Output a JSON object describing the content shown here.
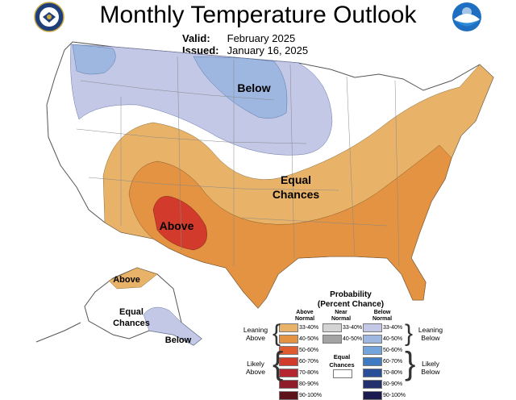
{
  "title": "Monthly Temperature Outlook",
  "valid": {
    "label": "Valid:",
    "value": "February 2025"
  },
  "issued": {
    "label": "Issued:",
    "value": "January 16, 2025"
  },
  "map_labels": {
    "below_north": "Below",
    "equal_line1": "Equal",
    "equal_line2": "Chances",
    "above_sw": "Above",
    "ak_above": "Above",
    "ak_equal1": "Equal",
    "ak_equal2": "Chances",
    "ak_below": "Below"
  },
  "legend": {
    "title_line1": "Probability",
    "title_line2": "(Percent Chance)",
    "above_header": "Above Normal",
    "near_header": "Near Normal",
    "below_header": "Below Normal",
    "equal_label": "Equal Chances",
    "leaning_above": "Leaning Above",
    "likely_above": "Likely Above",
    "leaning_below": "Leaning Below",
    "likely_below": "Likely Below",
    "above_bins": [
      {
        "label": "33-40%",
        "color": "#e8b368"
      },
      {
        "label": "40-50%",
        "color": "#e39341"
      },
      {
        "label": "50-60%",
        "color": "#e05a30"
      },
      {
        "label": "60-70%",
        "color": "#d23b2c"
      },
      {
        "label": "70-80%",
        "color": "#b62630"
      },
      {
        "label": "80-90%",
        "color": "#8f1e2a"
      },
      {
        "label": "90-100%",
        "color": "#5c1218"
      }
    ],
    "near_bins": [
      {
        "label": "33-40%",
        "color": "#d4d4d4"
      },
      {
        "label": "40-50%",
        "color": "#a3a3a3"
      }
    ],
    "below_bins": [
      {
        "label": "33-40%",
        "color": "#c2c8e6"
      },
      {
        "label": "40-50%",
        "color": "#9eb7e0"
      },
      {
        "label": "50-60%",
        "color": "#73a4dc"
      },
      {
        "label": "60-70%",
        "color": "#3f7bc3"
      },
      {
        "label": "70-80%",
        "color": "#2a4f9a"
      },
      {
        "label": "80-90%",
        "color": "#23306e"
      },
      {
        "label": "90-100%",
        "color": "#1b1b4f"
      }
    ]
  }
}
